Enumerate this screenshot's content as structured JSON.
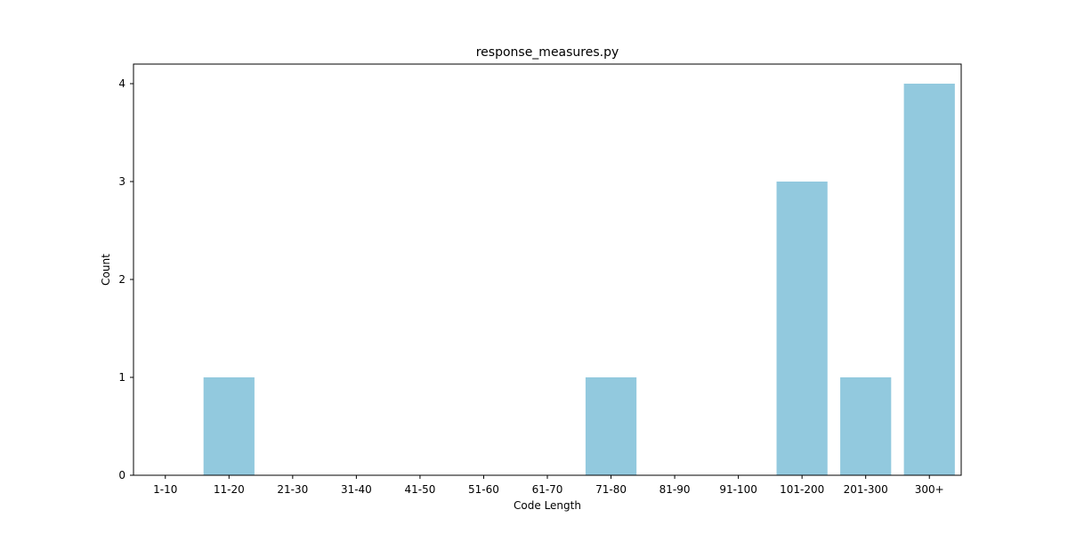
{
  "chart_data": {
    "type": "bar",
    "title": "response_measures.py",
    "xlabel": "Code Length",
    "ylabel": "Count",
    "categories": [
      "1-10",
      "11-20",
      "21-30",
      "31-40",
      "41-50",
      "51-60",
      "61-70",
      "71-80",
      "81-90",
      "91-100",
      "101-200",
      "201-300",
      "300+"
    ],
    "values": [
      0,
      1,
      0,
      0,
      0,
      0,
      0,
      1,
      0,
      0,
      3,
      1,
      4
    ],
    "yticks": [
      0,
      1,
      2,
      3,
      4
    ],
    "ylim": [
      0,
      4.2
    ],
    "grid": false,
    "bar_color": "#92c9de"
  }
}
